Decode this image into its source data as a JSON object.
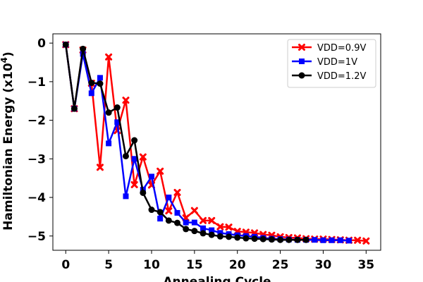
{
  "chart_data": {
    "type": "line",
    "xlabel": "Annealing Cycle",
    "ylabel": "Hamiltonian Energy (x10",
    "ylabel_exponent": "4",
    "ylabel_close": ")",
    "xlim": [
      -1.5,
      36.7
    ],
    "ylim": [
      -5.37,
      0.24
    ],
    "xticks": [
      0,
      5,
      10,
      15,
      20,
      25,
      30,
      35
    ],
    "yticks": [
      0,
      -1,
      -2,
      -3,
      -4,
      -5
    ],
    "xtick_labels": [
      "0",
      "5",
      "10",
      "15",
      "20",
      "25",
      "30",
      "35"
    ],
    "ytick_labels": [
      "0",
      "−1",
      "−2",
      "−3",
      "−4",
      "−5"
    ],
    "legend_position": "top-right",
    "grid": false,
    "series": [
      {
        "name": "VDD=0.9V",
        "color": "#ff0000",
        "marker": "x",
        "x": [
          0,
          1,
          2,
          3,
          4,
          5,
          6,
          7,
          8,
          9,
          10,
          11,
          12,
          13,
          14,
          15,
          16,
          17,
          18,
          19,
          20,
          21,
          22,
          23,
          24,
          25,
          26,
          27,
          28,
          29,
          30,
          31,
          32,
          33,
          34,
          35
        ],
        "y": [
          -0.04,
          -1.7,
          -0.18,
          -1.04,
          -3.22,
          -0.36,
          -2.27,
          -1.48,
          -3.67,
          -2.95,
          -3.68,
          -3.32,
          -4.35,
          -3.87,
          -4.53,
          -4.34,
          -4.6,
          -4.6,
          -4.76,
          -4.77,
          -4.88,
          -4.9,
          -4.92,
          -4.96,
          -4.98,
          -5.02,
          -5.04,
          -5.05,
          -5.07,
          -5.08,
          -5.08,
          -5.09,
          -5.1,
          -5.11,
          -5.11,
          -5.13
        ]
      },
      {
        "name": "VDD=1V",
        "color": "#0000ff",
        "marker": "s",
        "x": [
          0,
          1,
          2,
          3,
          4,
          5,
          6,
          7,
          8,
          9,
          10,
          11,
          12,
          13,
          14,
          15,
          16,
          17,
          18,
          19,
          20,
          21,
          22,
          23,
          24,
          25,
          26,
          27,
          28,
          29,
          30,
          31,
          32,
          33
        ],
        "y": [
          -0.04,
          -1.7,
          -0.28,
          -1.3,
          -0.9,
          -2.6,
          -2.05,
          -3.97,
          -3.0,
          -3.8,
          -3.46,
          -4.55,
          -4.0,
          -4.4,
          -4.65,
          -4.65,
          -4.8,
          -4.85,
          -4.92,
          -4.95,
          -4.98,
          -5.0,
          -5.02,
          -5.05,
          -5.07,
          -5.08,
          -5.09,
          -5.1,
          -5.1,
          -5.1,
          -5.11,
          -5.11,
          -5.11,
          -5.12
        ]
      },
      {
        "name": "VDD=1.2V",
        "color": "#000000",
        "marker": "o",
        "x": [
          0,
          1,
          2,
          3,
          4,
          5,
          6,
          7,
          8,
          9,
          10,
          11,
          12,
          13,
          14,
          15,
          16,
          17,
          18,
          19,
          20,
          21,
          22,
          23,
          24,
          25,
          26,
          27,
          28
        ],
        "y": [
          -0.04,
          -1.7,
          -0.15,
          -1.03,
          -1.05,
          -1.8,
          -1.67,
          -2.93,
          -2.52,
          -3.88,
          -4.32,
          -4.38,
          -4.6,
          -4.66,
          -4.82,
          -4.87,
          -4.93,
          -4.97,
          -5.01,
          -5.02,
          -5.04,
          -5.06,
          -5.07,
          -5.08,
          -5.09,
          -5.1,
          -5.1,
          -5.1,
          -5.1
        ]
      }
    ]
  }
}
